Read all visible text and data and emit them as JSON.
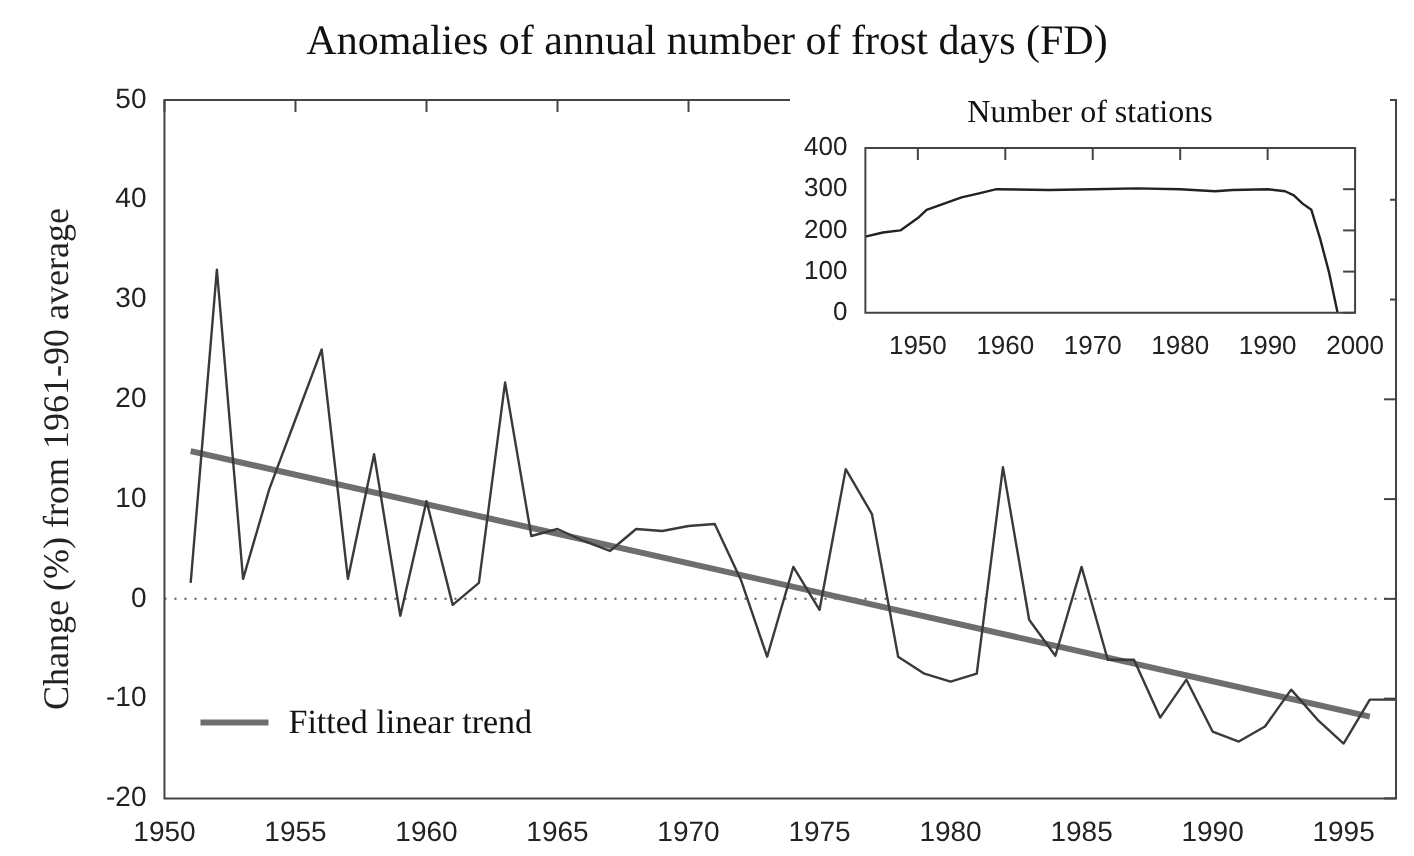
{
  "chart_data": [
    {
      "type": "line",
      "title": "Anomalies of annual number of frost days (FD)",
      "ylabel": "Change (%) from 1961-90 average",
      "xlim": [
        1950,
        1997
      ],
      "xticks": [
        1950,
        1955,
        1960,
        1965,
        1970,
        1975,
        1980,
        1985,
        1990,
        1995
      ],
      "ylim": [
        -20,
        50
      ],
      "yticks": [
        -20,
        -10,
        0,
        10,
        20,
        30,
        40,
        50
      ],
      "grid": false,
      "legend": "bottom left",
      "marker": "none",
      "ref_lines": [
        {
          "axis": "y",
          "value": 0,
          "line_style": "dotted",
          "color": "#555555"
        }
      ],
      "series": [
        {
          "color": "#3a3a3a",
          "x": [
            1951,
            1952,
            1953,
            1954,
            1955,
            1956,
            1957,
            1958,
            1959,
            1960,
            1961,
            1962,
            1963,
            1964,
            1965,
            1966,
            1967,
            1968,
            1969,
            1970,
            1971,
            1972,
            1973,
            1974,
            1975,
            1976,
            1977,
            1978,
            1979,
            1980,
            1981,
            1982,
            1983,
            1984,
            1985,
            1986,
            1987,
            1988,
            1989,
            1990,
            1991,
            1992,
            1993,
            1994,
            1995,
            1996,
            1997
          ],
          "values": [
            1.6,
            33,
            2,
            11,
            18,
            25,
            2,
            14.5,
            -1.7,
            9.8,
            -0.6,
            1.6,
            21.7,
            6.3,
            7,
            5.8,
            4.8,
            7,
            6.8,
            7.3,
            7.5,
            1.9,
            -5.8,
            3.2,
            -1.1,
            13,
            8.5,
            -5.8,
            -7.5,
            -8.3,
            -7.5,
            13.2,
            -2.1,
            -5.7,
            3.2,
            -6.1,
            -6.1,
            -11.9,
            -8.1,
            -13.3,
            -14.3,
            -12.8,
            -9.1,
            -12.1,
            -14.5,
            -10.1,
            -10.1
          ]
        },
        {
          "name": "Fitted linear trend",
          "color": "#6e6e6e",
          "x": [
            1951,
            1996
          ],
          "values": [
            14.8,
            -11.8
          ]
        }
      ]
    },
    {
      "type": "line",
      "title": "Number of stations",
      "xlim": [
        1944,
        2000
      ],
      "xticks": [
        1950,
        1960,
        1970,
        1980,
        1990,
        2000
      ],
      "ylim": [
        0,
        400
      ],
      "yticks": [
        0,
        100,
        200,
        300,
        400
      ],
      "grid": false,
      "marker": "none",
      "series": [
        {
          "color": "#222222",
          "x": [
            1944,
            1946,
            1948,
            1950,
            1951,
            1953,
            1955,
            1957,
            1959,
            1965,
            1970,
            1975,
            1980,
            1984,
            1986,
            1990,
            1992,
            1993,
            1994,
            1995,
            1996,
            1997,
            1998
          ],
          "values": [
            185,
            195,
            200,
            230,
            250,
            265,
            280,
            290,
            300,
            298,
            300,
            302,
            300,
            295,
            298,
            300,
            295,
            285,
            265,
            250,
            180,
            100,
            0
          ]
        }
      ]
    }
  ]
}
